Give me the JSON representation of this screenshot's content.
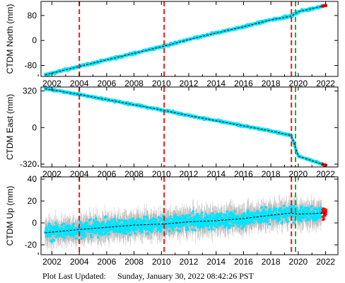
{
  "footer": {
    "label": "Plot Last Updated:",
    "timestamp": "Sunday, January 30, 2022 08:42:26 PST"
  },
  "colors": {
    "data": "#00e5ff",
    "error_bars": "#b8b8b8",
    "model": "#000000",
    "red_event": "#e41a1c",
    "green_event": "#1db31d",
    "recent_points": "#ff0000"
  },
  "chart_data": [
    {
      "type": "scatter",
      "title": "",
      "xlabel": "",
      "ylabel": "CTDM North (mm)",
      "xlim": [
        2001.2,
        2022.9
      ],
      "ylim": [
        -115,
        125
      ],
      "xticks": [
        2002,
        2004,
        2006,
        2008,
        2010,
        2012,
        2014,
        2016,
        2018,
        2020,
        2022
      ],
      "yticks": [
        -80,
        0,
        80
      ],
      "grid": false,
      "series": [
        {
          "values_by_date": [
            [
              2001.5,
              -110
            ],
            [
              2004.0,
              -83
            ],
            [
              2006.0,
              -62
            ],
            [
              2008.0,
              -41
            ],
            [
              2010.2,
              -18
            ],
            [
              2012.0,
              3
            ],
            [
              2014.0,
              24
            ],
            [
              2016.0,
              44
            ],
            [
              2018.0,
              66
            ],
            [
              2019.5,
              78
            ],
            [
              2020.0,
              92
            ],
            [
              2022.0,
              112
            ]
          ]
        }
      ],
      "event_lines": [
        {
          "x": 2004.0,
          "color": "red"
        },
        {
          "x": 2010.2,
          "color": "red"
        },
        {
          "x": 2019.5,
          "color": "red"
        },
        {
          "x": 2019.8,
          "color": "green"
        }
      ]
    },
    {
      "type": "scatter",
      "title": "",
      "xlabel": "",
      "ylabel": "CTDM East (mm)",
      "xlim": [
        2001.2,
        2022.9
      ],
      "ylim": [
        -345,
        355
      ],
      "xticks": [
        2002,
        2004,
        2006,
        2008,
        2010,
        2012,
        2014,
        2016,
        2018,
        2020,
        2022
      ],
      "yticks": [
        -320,
        0,
        320
      ],
      "grid": false,
      "series": [
        {
          "values_by_date": [
            [
              2001.5,
              340
            ],
            [
              2004.0,
              290
            ],
            [
              2006.0,
              245
            ],
            [
              2008.0,
              200
            ],
            [
              2010.2,
              150
            ],
            [
              2012.0,
              105
            ],
            [
              2014.0,
              60
            ],
            [
              2016.0,
              15
            ],
            [
              2018.0,
              -30
            ],
            [
              2019.5,
              -70
            ],
            [
              2020.0,
              -250
            ],
            [
              2022.0,
              -330
            ]
          ]
        }
      ],
      "event_lines": [
        {
          "x": 2004.0,
          "color": "red"
        },
        {
          "x": 2010.2,
          "color": "red"
        },
        {
          "x": 2019.5,
          "color": "red"
        },
        {
          "x": 2019.8,
          "color": "green"
        }
      ]
    },
    {
      "type": "scatter",
      "title": "",
      "xlabel": "",
      "ylabel": "CTDM Up (mm)",
      "xlim": [
        2001.2,
        2022.9
      ],
      "ylim": [
        -29,
        42
      ],
      "xticks": [
        2002,
        2004,
        2006,
        2008,
        2010,
        2012,
        2014,
        2016,
        2018,
        2020,
        2022
      ],
      "yticks": [
        -20,
        0,
        20,
        40
      ],
      "grid": false,
      "series": [
        {
          "values_by_date": [
            [
              2001.5,
              -9
            ],
            [
              2004.0,
              -6
            ],
            [
              2006.0,
              -4
            ],
            [
              2008.0,
              -2
            ],
            [
              2010.2,
              -1
            ],
            [
              2012.0,
              1
            ],
            [
              2014.0,
              2
            ],
            [
              2016.0,
              4
            ],
            [
              2018.0,
              7
            ],
            [
              2019.5,
              9
            ],
            [
              2020.0,
              8
            ],
            [
              2022.0,
              9
            ]
          ]
        }
      ],
      "event_lines": [
        {
          "x": 2004.0,
          "color": "red"
        },
        {
          "x": 2010.2,
          "color": "red"
        },
        {
          "x": 2019.5,
          "color": "red"
        },
        {
          "x": 2019.8,
          "color": "green"
        }
      ]
    }
  ]
}
